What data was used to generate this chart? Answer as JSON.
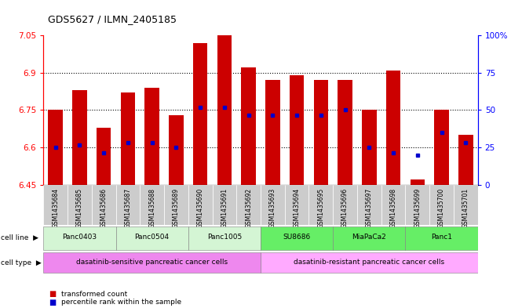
{
  "title": "GDS5627 / ILMN_2405185",
  "samples": [
    "GSM1435684",
    "GSM1435685",
    "GSM1435686",
    "GSM1435687",
    "GSM1435688",
    "GSM1435689",
    "GSM1435690",
    "GSM1435691",
    "GSM1435692",
    "GSM1435693",
    "GSM1435694",
    "GSM1435695",
    "GSM1435696",
    "GSM1435697",
    "GSM1435698",
    "GSM1435699",
    "GSM1435700",
    "GSM1435701"
  ],
  "bar_values": [
    6.75,
    6.83,
    6.68,
    6.82,
    6.84,
    6.73,
    7.02,
    7.05,
    6.92,
    6.87,
    6.89,
    6.87,
    6.87,
    6.75,
    6.91,
    6.47,
    6.75,
    6.65
  ],
  "percentile_values": [
    6.6,
    6.61,
    6.58,
    6.62,
    6.62,
    6.6,
    6.76,
    6.76,
    6.73,
    6.73,
    6.73,
    6.73,
    6.75,
    6.6,
    6.58,
    6.57,
    6.66,
    6.62
  ],
  "y_min": 6.45,
  "y_max": 7.05,
  "y_ticks_left": [
    6.45,
    6.6,
    6.75,
    6.9,
    7.05
  ],
  "y_tick_labels_left": [
    "6.45",
    "6.6",
    "6.75",
    "6.9",
    "7.05"
  ],
  "right_y_ticks": [
    0,
    25,
    50,
    75,
    100
  ],
  "right_y_tick_labels": [
    "0",
    "25",
    "50",
    "75",
    "100%"
  ],
  "gridlines": [
    6.6,
    6.75,
    6.9
  ],
  "cell_lines": [
    {
      "label": "Panc0403",
      "start": 0,
      "end": 2,
      "color": "#d4f5d4"
    },
    {
      "label": "Panc0504",
      "start": 3,
      "end": 5,
      "color": "#d4f5d4"
    },
    {
      "label": "Panc1005",
      "start": 6,
      "end": 8,
      "color": "#d4f5d4"
    },
    {
      "label": "SU8686",
      "start": 9,
      "end": 11,
      "color": "#66ee66"
    },
    {
      "label": "MiaPaCa2",
      "start": 12,
      "end": 14,
      "color": "#66ee66"
    },
    {
      "label": "Panc1",
      "start": 15,
      "end": 17,
      "color": "#66ee66"
    }
  ],
  "cell_types": [
    {
      "label": "dasatinib-sensitive pancreatic cancer cells",
      "start": 0,
      "end": 8,
      "color": "#ee88ee"
    },
    {
      "label": "dasatinib-resistant pancreatic cancer cells",
      "start": 9,
      "end": 17,
      "color": "#ffaaff"
    }
  ],
  "bar_color": "#cc0000",
  "dot_color": "#0000cc",
  "xlabel_bg": "#cccccc",
  "legend_bar_label": "transformed count",
  "legend_dot_label": "percentile rank within the sample",
  "cell_line_label": "cell line",
  "cell_type_label": "cell type"
}
